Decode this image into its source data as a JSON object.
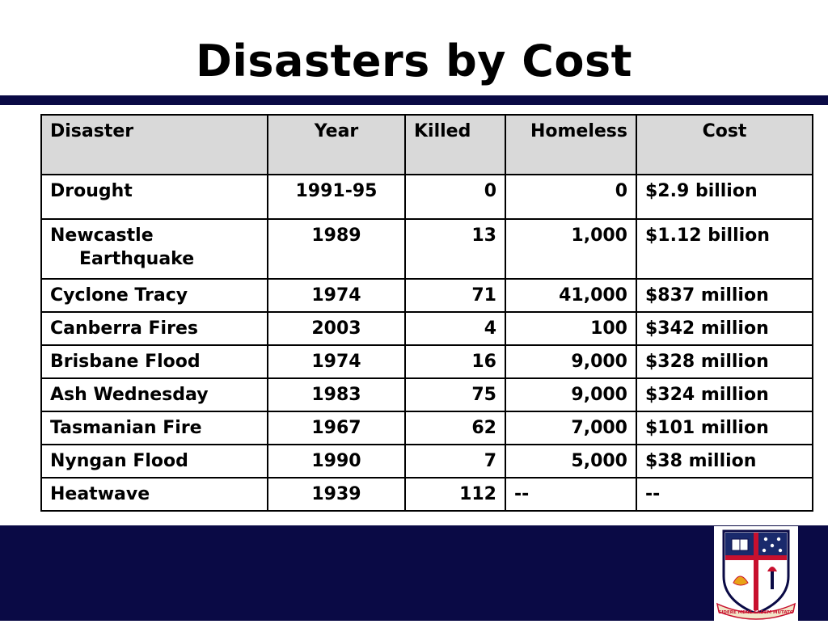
{
  "slide": {
    "title": "Disasters by Cost"
  },
  "table": {
    "headers": {
      "disaster": "Disaster",
      "year": "Year",
      "killed": "Killed",
      "homeless": "Homeless",
      "cost": "Cost"
    },
    "rows": [
      {
        "disaster": "Drought",
        "disaster_line2": "",
        "year": "1991-95",
        "killed": "0",
        "homeless": "0",
        "cost": "$2.9 billion"
      },
      {
        "disaster": "Newcastle",
        "disaster_line2": "Earthquake",
        "year": "1989",
        "killed": "13",
        "homeless": "1,000",
        "cost": "$1.12 billion"
      },
      {
        "disaster": "Cyclone Tracy",
        "disaster_line2": "",
        "year": "1974",
        "killed": "71",
        "homeless": "41,000",
        "cost": "$837 million"
      },
      {
        "disaster": "Canberra Fires",
        "disaster_line2": "",
        "year": "2003",
        "killed": "4",
        "homeless": "100",
        "cost": "$342 million"
      },
      {
        "disaster": "Brisbane Flood",
        "disaster_line2": "",
        "year": "1974",
        "killed": "16",
        "homeless": "9,000",
        "cost": "$328 million"
      },
      {
        "disaster": "Ash Wednesday",
        "disaster_line2": "",
        "year": "1983",
        "killed": "75",
        "homeless": "9,000",
        "cost": "$324 million"
      },
      {
        "disaster": "Tasmanian Fire",
        "disaster_line2": "",
        "year": "1967",
        "killed": "62",
        "homeless": "7,000",
        "cost": "$101 million"
      },
      {
        "disaster": "Nyngan Flood",
        "disaster_line2": "",
        "year": "1990",
        "killed": "7",
        "homeless": "5,000",
        "cost": "$38 million"
      },
      {
        "disaster": "Heatwave",
        "disaster_line2": "",
        "year": "1939",
        "killed": "112",
        "homeless": "--",
        "cost": "--"
      }
    ]
  },
  "crest": {
    "motto": "SIDERE MENS EADEM MUTATO",
    "icon": "university-crest-icon"
  },
  "colors": {
    "navy": "#0a0a45",
    "header_fill": "#d9d9d9",
    "crest_red": "#c8102e",
    "crest_gold": "#e8a317"
  }
}
